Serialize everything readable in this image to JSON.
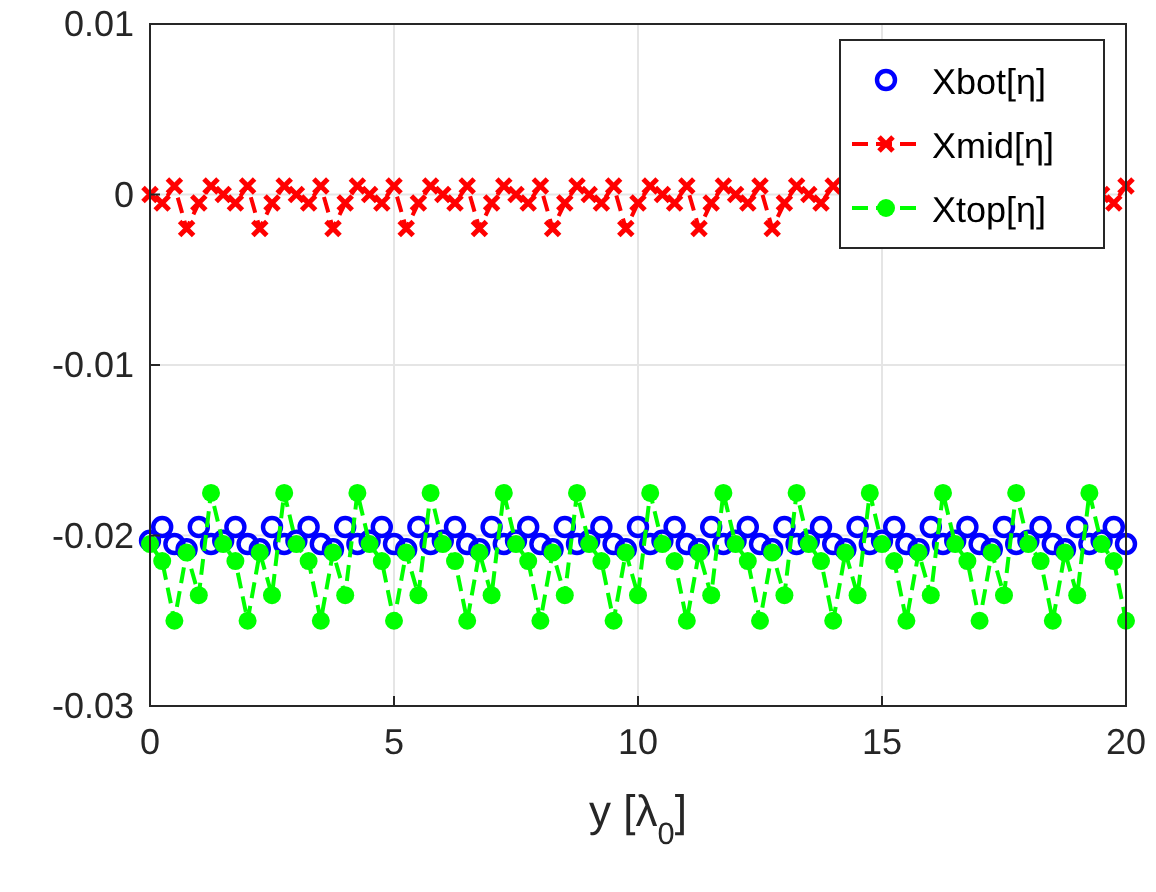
{
  "chart_data": {
    "type": "line",
    "xlabel": "y [λ$_{0}$]",
    "x": [
      0,
      0.25,
      0.5,
      0.75,
      1,
      1.25,
      1.5,
      1.75,
      2,
      2.25,
      2.5,
      2.75,
      3,
      3.25,
      3.5,
      3.75,
      4,
      4.25,
      4.5,
      4.75,
      5,
      5.25,
      5.5,
      5.75,
      6,
      6.25,
      6.5,
      6.75,
      7,
      7.25,
      7.5,
      7.75,
      8,
      8.25,
      8.5,
      8.75,
      9,
      9.25,
      9.5,
      9.75,
      10,
      10.25,
      10.5,
      10.75,
      11,
      11.25,
      11.5,
      11.75,
      12,
      12.25,
      12.5,
      12.75,
      13,
      13.25,
      13.5,
      13.75,
      14,
      14.25,
      14.5,
      14.75,
      15,
      15.25,
      15.5,
      15.75,
      16,
      16.25,
      16.5,
      16.75,
      17,
      17.25,
      17.5,
      17.75,
      18,
      18.25,
      18.5,
      18.75,
      19,
      19.25,
      19.5,
      19.75,
      20
    ],
    "series": [
      {
        "name": "Xbot[η]",
        "type": "scatter",
        "color": "#0000ff",
        "marker": "circle",
        "values": [
          -0.0203,
          -0.0195,
          -0.0205,
          -0.0208,
          -0.0195,
          -0.0205,
          -0.0203,
          -0.0195,
          -0.0205,
          -0.0208,
          -0.0195,
          -0.0205,
          -0.0203,
          -0.0195,
          -0.0205,
          -0.0208,
          -0.0195,
          -0.0205,
          -0.0203,
          -0.0195,
          -0.0205,
          -0.0208,
          -0.0195,
          -0.0205,
          -0.0203,
          -0.0195,
          -0.0205,
          -0.0208,
          -0.0195,
          -0.0205,
          -0.0203,
          -0.0195,
          -0.0205,
          -0.0208,
          -0.0195,
          -0.0205,
          -0.0203,
          -0.0195,
          -0.0205,
          -0.0208,
          -0.0195,
          -0.0205,
          -0.0203,
          -0.0195,
          -0.0205,
          -0.0208,
          -0.0195,
          -0.0205,
          -0.0203,
          -0.0195,
          -0.0205,
          -0.0208,
          -0.0195,
          -0.0205,
          -0.0203,
          -0.0195,
          -0.0205,
          -0.0208,
          -0.0195,
          -0.0205,
          -0.0203,
          -0.0195,
          -0.0205,
          -0.0208,
          -0.0195,
          -0.0205,
          -0.0203,
          -0.0195,
          -0.0205,
          -0.0208,
          -0.0195,
          -0.0205,
          -0.0203,
          -0.0195,
          -0.0205,
          -0.0208,
          -0.0195,
          -0.0205,
          -0.0203,
          -0.0195,
          -0.0205
        ]
      },
      {
        "name": "Xmid[η]",
        "color": "#ff0000",
        "marker": "cross",
        "line_style": "dashed",
        "values": [
          0,
          -0.0005,
          0.0005,
          -0.002,
          -0.0005,
          0.0005,
          0,
          -0.0005,
          0.0005,
          -0.002,
          -0.0005,
          0.0005,
          0,
          -0.0005,
          0.0005,
          -0.002,
          -0.0005,
          0.0005,
          0,
          -0.0005,
          0.0005,
          -0.002,
          -0.0005,
          0.0005,
          0,
          -0.0005,
          0.0005,
          -0.002,
          -0.0005,
          0.0005,
          0,
          -0.0005,
          0.0005,
          -0.002,
          -0.0005,
          0.0005,
          0,
          -0.0005,
          0.0005,
          -0.002,
          -0.0005,
          0.0005,
          0,
          -0.0005,
          0.0005,
          -0.002,
          -0.0005,
          0.0005,
          0,
          -0.0005,
          0.0005,
          -0.002,
          -0.0005,
          0.0005,
          0,
          -0.0005,
          0.0005,
          null,
          null,
          null,
          null,
          null,
          null,
          null,
          null,
          null,
          null,
          null,
          null,
          null,
          null,
          null,
          null,
          null,
          null,
          null,
          null,
          null,
          0,
          -0.0005,
          0.0005
        ]
      },
      {
        "name": "Xtop[η]",
        "color": "#00ff00",
        "marker": "circle",
        "line_style": "dashed",
        "values": [
          -0.0205,
          -0.0215,
          -0.025,
          -0.021,
          -0.0235,
          -0.0175,
          -0.0205,
          -0.0215,
          -0.025,
          -0.021,
          -0.0235,
          -0.0175,
          -0.0205,
          -0.0215,
          -0.025,
          -0.021,
          -0.0235,
          -0.0175,
          -0.0205,
          -0.0215,
          -0.025,
          -0.021,
          -0.0235,
          -0.0175,
          -0.0205,
          -0.0215,
          -0.025,
          -0.021,
          -0.0235,
          -0.0175,
          -0.0205,
          -0.0215,
          -0.025,
          -0.021,
          -0.0235,
          -0.0175,
          -0.0205,
          -0.0215,
          -0.025,
          -0.021,
          -0.0235,
          -0.0175,
          -0.0205,
          -0.0215,
          -0.025,
          -0.021,
          -0.0235,
          -0.0175,
          -0.0205,
          -0.0215,
          -0.025,
          -0.021,
          -0.0235,
          -0.0175,
          -0.0205,
          -0.0215,
          -0.025,
          -0.021,
          -0.0235,
          -0.0175,
          -0.0205,
          -0.0215,
          -0.025,
          -0.021,
          -0.0235,
          -0.0175,
          -0.0205,
          -0.0215,
          -0.025,
          -0.021,
          -0.0235,
          -0.0175,
          -0.0205,
          -0.0215,
          -0.025,
          -0.021,
          -0.0235,
          -0.0175,
          -0.0205,
          -0.0215,
          -0.025
        ]
      }
    ],
    "xlim": [
      0,
      20
    ],
    "xticks": [
      0,
      5,
      10,
      15,
      20
    ],
    "ylim": [
      -0.03,
      0.01
    ],
    "yticks": [
      -0.03,
      -0.02,
      -0.01,
      0,
      0.01
    ],
    "grid": true,
    "legend": "top right"
  }
}
